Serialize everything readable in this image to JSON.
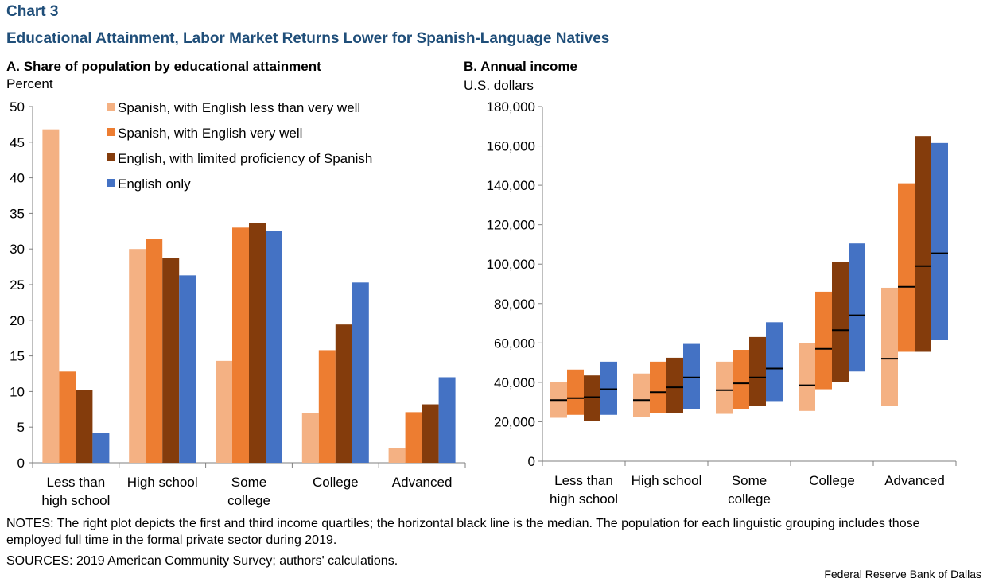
{
  "header": {
    "chart_label": "Chart 3",
    "title": "Educational Attainment, Labor Market Returns Lower for Spanish-Language Natives"
  },
  "panel_a": {
    "title": "A. Share of population by educational attainment",
    "unit": "Percent"
  },
  "panel_b": {
    "title": "B. Annual income",
    "unit": "U.S. dollars"
  },
  "notes": "NOTES: The right plot depicts the first and third income quartiles; the horizontal black line is the median. The population for each linguistic grouping includes those employed full time in the formal private sector during 2019.",
  "sources": "SOURCES: 2019 American Community Survey; authors' calculations.",
  "footer": "Federal Reserve Bank of Dallas",
  "chart_data": [
    {
      "type": "bar",
      "categories": [
        [
          "Less than",
          "high school"
        ],
        [
          "High school"
        ],
        [
          "Some",
          "college"
        ],
        [
          "College"
        ],
        [
          "Advanced"
        ]
      ],
      "ylim": [
        0,
        50
      ],
      "yticks": [
        0,
        5,
        10,
        15,
        20,
        25,
        30,
        35,
        40,
        45,
        50
      ],
      "legend_position": "top-right",
      "grid": false,
      "series": [
        {
          "name": "Spanish, with English less than very well",
          "color": "#f4b183",
          "values": [
            46.8,
            30.0,
            14.3,
            7.0,
            2.1
          ]
        },
        {
          "name": "Spanish, with English very well",
          "color": "#ed7d31",
          "values": [
            12.8,
            31.4,
            33.0,
            15.8,
            7.1
          ]
        },
        {
          "name": "English, with limited proficiency of Spanish",
          "color": "#843c0c",
          "values": [
            10.2,
            28.7,
            33.7,
            19.4,
            8.2
          ]
        },
        {
          "name": "English only",
          "color": "#4472c4",
          "values": [
            4.2,
            26.3,
            32.5,
            25.3,
            12.0
          ]
        }
      ]
    },
    {
      "type": "box",
      "categories": [
        [
          "Less than",
          "high school"
        ],
        [
          "High school"
        ],
        [
          "Some",
          "college"
        ],
        [
          "College"
        ],
        [
          "Advanced"
        ]
      ],
      "ylim": [
        0,
        180000
      ],
      "yticks": [
        0,
        20000,
        40000,
        60000,
        80000,
        100000,
        120000,
        140000,
        160000,
        180000
      ],
      "ytick_labels": [
        "0",
        "20,000",
        "40,000",
        "60,000",
        "80,000",
        "100,000",
        "120,000",
        "140,000",
        "160,000",
        "180,000"
      ],
      "median_color": "#000000",
      "series": [
        {
          "color": "#f4b183",
          "q1": [
            22000,
            22500,
            24000,
            25500,
            28000
          ],
          "median": [
            31000,
            31000,
            36000,
            38500,
            52000
          ],
          "q3": [
            40000,
            44500,
            50500,
            60000,
            88000
          ]
        },
        {
          "color": "#ed7d31",
          "q1": [
            23500,
            24500,
            26500,
            36500,
            55500
          ],
          "median": [
            32000,
            35000,
            39500,
            57000,
            88500
          ],
          "q3": [
            46500,
            50500,
            56500,
            86000,
            141000
          ]
        },
        {
          "color": "#843c0c",
          "q1": [
            20500,
            24500,
            28000,
            40000,
            55500
          ],
          "median": [
            32500,
            37500,
            42500,
            66500,
            99000
          ],
          "q3": [
            43500,
            52500,
            63000,
            101000,
            165000
          ]
        },
        {
          "color": "#4472c4",
          "q1": [
            23500,
            26500,
            30500,
            45500,
            61500
          ],
          "median": [
            36500,
            42500,
            47000,
            74000,
            105500
          ],
          "q3": [
            50500,
            59500,
            70500,
            110500,
            161500
          ]
        }
      ]
    }
  ]
}
